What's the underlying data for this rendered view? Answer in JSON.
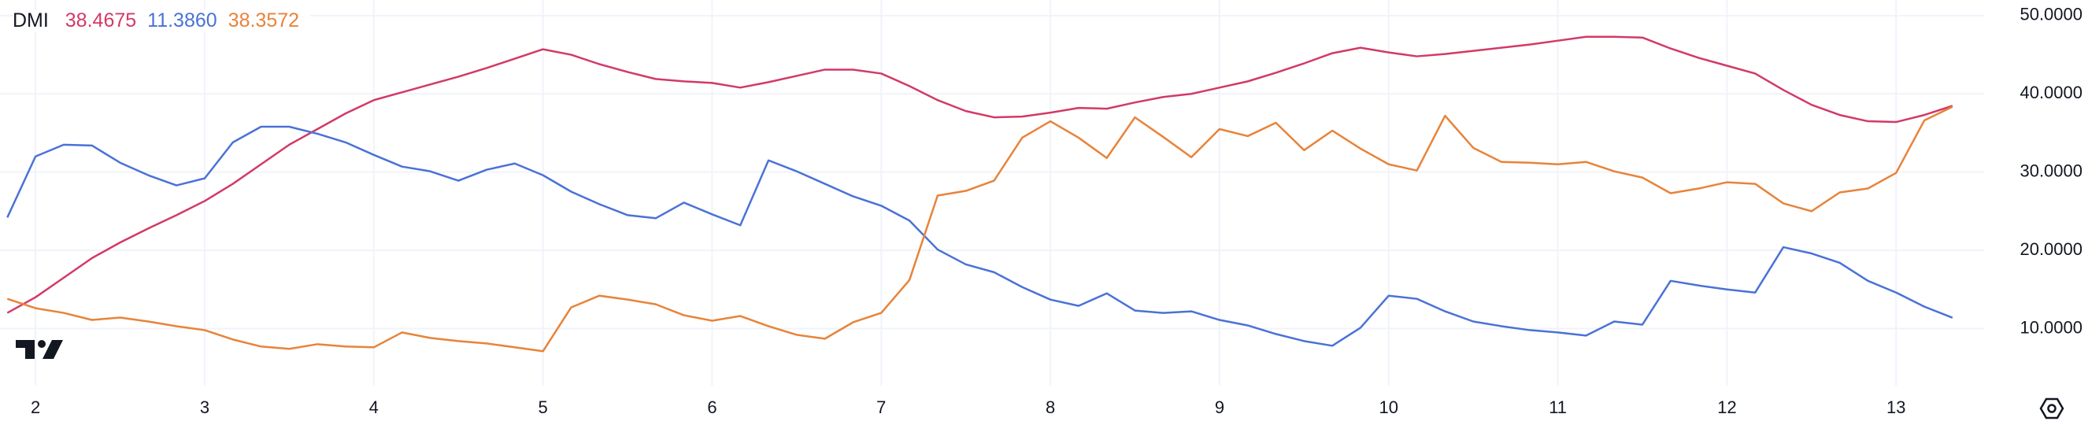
{
  "chart_data": {
    "type": "line",
    "title": "DMI",
    "x": [
      1.8333,
      2,
      2.1667,
      2.3333,
      2.5,
      2.6667,
      2.8333,
      3,
      3.1667,
      3.3333,
      3.5,
      3.6667,
      3.8333,
      4,
      4.1667,
      4.3333,
      4.5,
      4.6667,
      4.8333,
      5,
      5.1667,
      5.3333,
      5.5,
      5.6667,
      5.8333,
      6,
      6.1667,
      6.3333,
      6.5,
      6.6667,
      6.8333,
      7,
      7.1667,
      7.3333,
      7.5,
      7.6667,
      7.8333,
      8,
      8.1667,
      8.3333,
      8.5,
      8.6667,
      8.8333,
      9,
      9.1667,
      9.3333,
      9.5,
      9.6667,
      9.8333,
      10,
      10.1667,
      10.3333,
      10.5,
      10.6667,
      10.8333,
      11,
      11.1667,
      11.3333,
      11.5,
      11.6667,
      11.8333,
      12,
      12.1667,
      12.3333,
      12.5,
      12.6667,
      12.8333,
      13,
      13.1667,
      13.3333
    ],
    "series": [
      {
        "color": "#d23a66",
        "values": [
          12.0,
          14,
          16.5,
          19,
          21,
          22.8,
          24.5,
          26.3,
          28.5,
          31,
          33.5,
          35.5,
          37.5,
          39.2,
          40.2,
          41.2,
          42.2,
          43.3,
          44.5,
          45.7,
          45.0,
          43.8,
          42.8,
          41.9,
          41.6,
          41.4,
          40.8,
          41.5,
          42.3,
          43.1,
          43.1,
          42.6,
          41,
          39.2,
          37.8,
          37,
          37.1,
          37.6,
          38.2,
          38.1,
          38.9,
          39.6,
          40,
          40.8,
          41.6,
          42.7,
          43.9,
          45.2,
          45.9,
          45.3,
          44.8,
          45.1,
          45.5,
          45.9,
          46.3,
          46.8,
          47.3,
          47.3,
          47.2,
          45.8,
          44.6,
          43.6,
          42.6,
          40.5,
          38.6,
          37.3,
          36.5,
          36.4,
          37.3,
          38.4675
        ],
        "value_labels": [
          null,
          null,
          null,
          null,
          null,
          null,
          null,
          null,
          null,
          null,
          null,
          null,
          null,
          null,
          null,
          null,
          null,
          null,
          null,
          null,
          null,
          null,
          null,
          null,
          null,
          null,
          null,
          null,
          null,
          null,
          null,
          null,
          null,
          null,
          null,
          null,
          null,
          null,
          null,
          null,
          null,
          null,
          null,
          null,
          null,
          null,
          null,
          null,
          null,
          null,
          null,
          null,
          null,
          null,
          null,
          null,
          null,
          null,
          null,
          null,
          null,
          null,
          null,
          null,
          null,
          null,
          null,
          null,
          null,
          "38.4675"
        ]
      },
      {
        "color": "#4a72d6",
        "values": [
          24.2,
          32,
          33.5,
          33.4,
          31.2,
          29.6,
          28.3,
          29.2,
          33.8,
          35.8,
          35.8,
          34.9,
          33.8,
          32.2,
          30.7,
          30.1,
          28.9,
          30.3,
          31.1,
          29.6,
          27.5,
          25.9,
          24.5,
          24.1,
          26.1,
          24.6,
          23.2,
          31.5,
          30.1,
          28.5,
          26.9,
          25.7,
          23.8,
          20.1,
          18.2,
          17.2,
          15.3,
          13.7,
          12.9,
          14.5,
          12.3,
          12,
          12.2,
          11.1,
          10.4,
          9.3,
          8.4,
          7.8,
          10.1,
          14.2,
          13.8,
          12.2,
          10.9,
          10.3,
          9.8,
          9.5,
          9.1,
          10.9,
          10.5,
          16.1,
          15.5,
          15,
          14.6,
          20.4,
          19.6,
          18.4,
          16.1,
          14.6,
          12.8,
          11.386
        ],
        "value_labels": [
          null,
          null,
          null,
          null,
          null,
          null,
          null,
          null,
          null,
          null,
          null,
          null,
          null,
          null,
          null,
          null,
          null,
          null,
          null,
          null,
          null,
          null,
          null,
          null,
          null,
          null,
          null,
          null,
          null,
          null,
          null,
          null,
          null,
          null,
          null,
          null,
          null,
          null,
          null,
          null,
          null,
          null,
          null,
          null,
          null,
          null,
          null,
          null,
          null,
          null,
          null,
          null,
          null,
          null,
          null,
          null,
          null,
          null,
          null,
          null,
          null,
          null,
          null,
          null,
          null,
          null,
          null,
          null,
          null,
          "11.3860"
        ]
      },
      {
        "color": "#e8833a",
        "values": [
          13.8,
          12.6,
          12,
          11.1,
          11.4,
          10.9,
          10.3,
          9.8,
          8.6,
          7.7,
          7.4,
          8,
          7.7,
          7.6,
          9.5,
          8.8,
          8.4,
          8.1,
          7.6,
          7.1,
          12.7,
          14.2,
          13.7,
          13.1,
          11.7,
          11,
          11.6,
          10.3,
          9.2,
          8.7,
          10.8,
          12,
          16.2,
          27,
          27.6,
          28.9,
          34.4,
          36.5,
          34.4,
          31.8,
          37,
          34.5,
          31.9,
          35.5,
          34.6,
          36.3,
          32.8,
          35.3,
          33,
          31,
          30.2,
          37.2,
          33.1,
          31.3,
          31.2,
          31,
          31.3,
          30.1,
          29.3,
          27.3,
          27.9,
          28.7,
          28.5,
          26,
          25,
          27.4,
          27.9,
          29.9,
          36.6,
          38.3572
        ],
        "value_labels": [
          null,
          null,
          null,
          null,
          null,
          null,
          null,
          null,
          null,
          null,
          null,
          null,
          null,
          null,
          null,
          null,
          null,
          null,
          null,
          null,
          null,
          null,
          null,
          null,
          null,
          null,
          null,
          null,
          null,
          null,
          null,
          null,
          null,
          null,
          null,
          null,
          null,
          null,
          null,
          null,
          null,
          null,
          null,
          null,
          null,
          null,
          null,
          null,
          null,
          null,
          null,
          null,
          null,
          null,
          null,
          null,
          null,
          null,
          null,
          null,
          null,
          null,
          null,
          null,
          null,
          null,
          null,
          null,
          null,
          "38.3572"
        ]
      }
    ],
    "xlim": [
      1.79,
      13.52
    ],
    "xticks": [
      2,
      3,
      4,
      5,
      6,
      7,
      8,
      9,
      10,
      11,
      12,
      13
    ],
    "ylim": [
      2.7,
      52
    ],
    "yticks": [
      {
        "value": 10,
        "label": "10.0000"
      },
      {
        "value": 20,
        "label": "20.0000"
      },
      {
        "value": 30,
        "label": "30.0000"
      },
      {
        "value": 40,
        "label": "40.0000"
      },
      {
        "value": 50,
        "label": "50.0000"
      }
    ],
    "grid": true
  }
}
